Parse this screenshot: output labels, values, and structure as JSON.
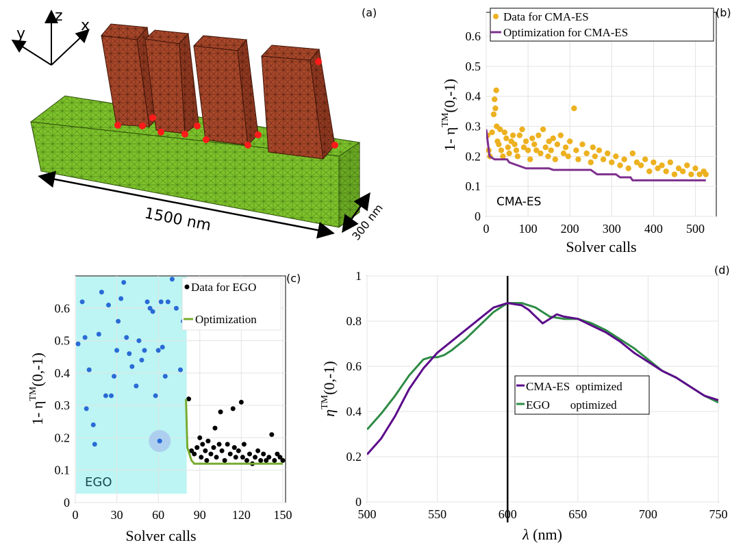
{
  "panels": {
    "a": {
      "label": "(a)",
      "axes": {
        "x": "x",
        "y": "y",
        "z": "z"
      },
      "dims": {
        "length": "1500 nm",
        "depth": "300 nm"
      },
      "colors": {
        "base": "#7dc22b",
        "pillar": "#a8472a",
        "dot": "#ff1a1a"
      }
    },
    "b": {
      "label": "(b)",
      "inset_text": "CMA-ES",
      "colors": {
        "data": "#edb120",
        "optim": "#7e2f8e"
      },
      "chart_data": {
        "type": "scatter",
        "title": "",
        "xlabel": "Solver calls",
        "ylabel": {
          "prefix": "1- η",
          "sup": "TM",
          "suffix": "(0,-1)"
        },
        "xlim": [
          0,
          550
        ],
        "ylim": [
          0,
          0.68
        ],
        "xticks": [
          0,
          100,
          200,
          300,
          400,
          500
        ],
        "yticks": [
          0,
          0.1,
          0.2,
          0.3,
          0.4,
          0.5,
          0.6
        ],
        "legend_position": "top-left",
        "grid": true,
        "series": [
          {
            "name": "Data for CMA-ES",
            "kind": "scatter",
            "x": [
              3,
              6,
              9,
              14,
              18,
              20,
              22,
              24,
              25,
              27,
              30,
              33,
              36,
              40,
              44,
              48,
              52,
              55,
              60,
              64,
              68,
              72,
              75,
              80,
              86,
              90,
              95,
              100,
              105,
              110,
              115,
              120,
              125,
              130,
              136,
              142,
              148,
              150,
              155,
              160,
              165,
              170,
              178,
              185,
              190,
              196,
              200,
              210,
              215,
              220,
              230,
              240,
              250,
              255,
              260,
              270,
              280,
              290,
              300,
              310,
              320,
              330,
              340,
              350,
              360,
              370,
              380,
              390,
              400,
              410,
              420,
              430,
              440,
              450,
              460,
              470,
              480,
              490,
              500,
              510,
              520,
              525
            ],
            "y": [
              0.27,
              0.22,
              0.2,
              0.28,
              0.34,
              0.39,
              0.36,
              0.42,
              0.3,
              0.25,
              0.24,
              0.29,
              0.22,
              0.2,
              0.28,
              0.26,
              0.23,
              0.21,
              0.25,
              0.27,
              0.24,
              0.22,
              0.2,
              0.27,
              0.29,
              0.23,
              0.25,
              0.22,
              0.19,
              0.26,
              0.24,
              0.22,
              0.27,
              0.21,
              0.29,
              0.23,
              0.2,
              0.25,
              0.22,
              0.26,
              0.19,
              0.24,
              0.27,
              0.21,
              0.23,
              0.2,
              0.25,
              0.36,
              0.22,
              0.19,
              0.24,
              0.21,
              0.18,
              0.23,
              0.2,
              0.22,
              0.19,
              0.21,
              0.18,
              0.2,
              0.17,
              0.19,
              0.16,
              0.21,
              0.18,
              0.17,
              0.19,
              0.15,
              0.18,
              0.16,
              0.17,
              0.15,
              0.18,
              0.14,
              0.16,
              0.15,
              0.17,
              0.14,
              0.16,
              0.14,
              0.15,
              0.14
            ]
          },
          {
            "name": "Optimization for CMA-ES",
            "kind": "line",
            "x": [
              0,
              8,
              20,
              50,
              55,
              95,
              100,
              150,
              160,
              250,
              265,
              310,
              320,
              345,
              350,
              525
            ],
            "y": [
              0.29,
              0.2,
              0.19,
              0.19,
              0.18,
              0.16,
              0.16,
              0.16,
              0.155,
              0.155,
              0.14,
              0.14,
              0.13,
              0.13,
              0.12,
              0.12
            ]
          }
        ]
      }
    },
    "c": {
      "label": "(c)",
      "inset_text": "EGO",
      "colors": {
        "shade": "#bcf5f3",
        "init": "#2a6ad6",
        "data": "#000000",
        "optim": "#77ac30",
        "highlight": "#a9c6ee"
      },
      "chart_data": {
        "type": "scatter",
        "title": "",
        "xlabel": "Solver calls",
        "ylabel": {
          "prefix": "1- η",
          "sup": "TM",
          "suffix": "(0,-1)"
        },
        "xlim": [
          0,
          152
        ],
        "ylim": [
          0,
          0.7
        ],
        "xticks": [
          0,
          30,
          60,
          90,
          120,
          150
        ],
        "yticks": [
          0,
          0.1,
          0.2,
          0.3,
          0.4,
          0.5,
          0.6
        ],
        "shaded_range": [
          0,
          80
        ],
        "legend_position": "top-right",
        "grid": true,
        "series": [
          {
            "name": "",
            "kind": "scatter-initial",
            "x": [
              2,
              5,
              7,
              8,
              10,
              13,
              14,
              17,
              19,
              22,
              24,
              26,
              28,
              30,
              31,
              33,
              35,
              37,
              39,
              41,
              44,
              46,
              48,
              50,
              52,
              54,
              56,
              58,
              60,
              62,
              63,
              65,
              67,
              70,
              73,
              76,
              78
            ],
            "y": [
              0.49,
              0.62,
              0.51,
              0.29,
              0.41,
              0.24,
              0.18,
              0.52,
              0.65,
              0.33,
              0.61,
              0.33,
              0.39,
              0.47,
              0.56,
              0.63,
              0.68,
              0.51,
              0.46,
              0.42,
              0.36,
              0.5,
              0.44,
              0.47,
              0.62,
              0.6,
              0.59,
              0.33,
              0.47,
              0.62,
              0.48,
              0.39,
              0.62,
              0.69,
              0.6,
              0.41,
              0.56
            ]
          },
          {
            "name": "Data for EGO",
            "kind": "scatter",
            "x": [
              82,
              84,
              86,
              88,
              90,
              91,
              92,
              94,
              95,
              96,
              98,
              100,
              101,
              102,
              104,
              105,
              106,
              108,
              110,
              112,
              114,
              115,
              116,
              118,
              120,
              121,
              122,
              124,
              126,
              128,
              130,
              132,
              134,
              136,
              138,
              140,
              142,
              144,
              146,
              148,
              150
            ],
            "y": [
              0.32,
              0.16,
              0.15,
              0.17,
              0.2,
              0.14,
              0.18,
              0.16,
              0.13,
              0.19,
              0.15,
              0.17,
              0.23,
              0.14,
              0.18,
              0.28,
              0.16,
              0.13,
              0.18,
              0.15,
              0.29,
              0.17,
              0.14,
              0.16,
              0.31,
              0.14,
              0.18,
              0.13,
              0.15,
              0.12,
              0.14,
              0.16,
              0.13,
              0.15,
              0.13,
              0.14,
              0.21,
              0.13,
              0.15,
              0.14,
              0.13
            ]
          },
          {
            "name": "Optimization",
            "kind": "line",
            "x": [
              80,
              81,
              84,
              86,
              150
            ],
            "y": [
              0.32,
              0.17,
              0.13,
              0.12,
              0.12
            ]
          }
        ],
        "highlight_point": {
          "x": 61,
          "y": 0.19
        }
      }
    },
    "d": {
      "label": "(d)",
      "colors": {
        "cma": "#5b0a8a",
        "ego": "#2e8b45",
        "marker": "#000000"
      },
      "chart_data": {
        "type": "line",
        "title": "",
        "xlabel": {
          "prefix": "λ",
          "suffix": " (nm)"
        },
        "ylabel": {
          "prefix": "η",
          "sup": "TM",
          "suffix": "(0,-1)"
        },
        "xlim": [
          500,
          750
        ],
        "ylim": [
          0,
          1
        ],
        "xticks": [
          500,
          550,
          600,
          650,
          700,
          750
        ],
        "yticks": [
          0,
          0.2,
          0.4,
          0.6,
          0.8,
          1
        ],
        "vline_x": 600,
        "legend_position": "center",
        "grid": true,
        "series": [
          {
            "name": "CMA-ES  optimized",
            "x": [
              500,
              510,
              520,
              530,
              540,
              550,
              560,
              570,
              580,
              590,
              600,
              610,
              615,
              620,
              625,
              630,
              635,
              640,
              650,
              660,
              670,
              680,
              690,
              700,
              710,
              720,
              730,
              740,
              750
            ],
            "y": [
              0.21,
              0.28,
              0.38,
              0.5,
              0.59,
              0.66,
              0.71,
              0.76,
              0.81,
              0.86,
              0.88,
              0.87,
              0.85,
              0.82,
              0.79,
              0.81,
              0.83,
              0.82,
              0.81,
              0.78,
              0.75,
              0.71,
              0.66,
              0.62,
              0.58,
              0.55,
              0.51,
              0.47,
              0.45
            ]
          },
          {
            "name": "EGO       optimized",
            "x": [
              500,
              510,
              520,
              530,
              540,
              545,
              550,
              555,
              560,
              570,
              580,
              590,
              600,
              610,
              620,
              630,
              640,
              650,
              660,
              670,
              680,
              690,
              700,
              710,
              720,
              730,
              740,
              750
            ],
            "y": [
              0.32,
              0.39,
              0.47,
              0.56,
              0.63,
              0.64,
              0.64,
              0.65,
              0.67,
              0.72,
              0.78,
              0.84,
              0.88,
              0.88,
              0.86,
              0.82,
              0.81,
              0.81,
              0.79,
              0.76,
              0.72,
              0.68,
              0.63,
              0.58,
              0.55,
              0.51,
              0.47,
              0.44
            ]
          }
        ]
      }
    }
  }
}
